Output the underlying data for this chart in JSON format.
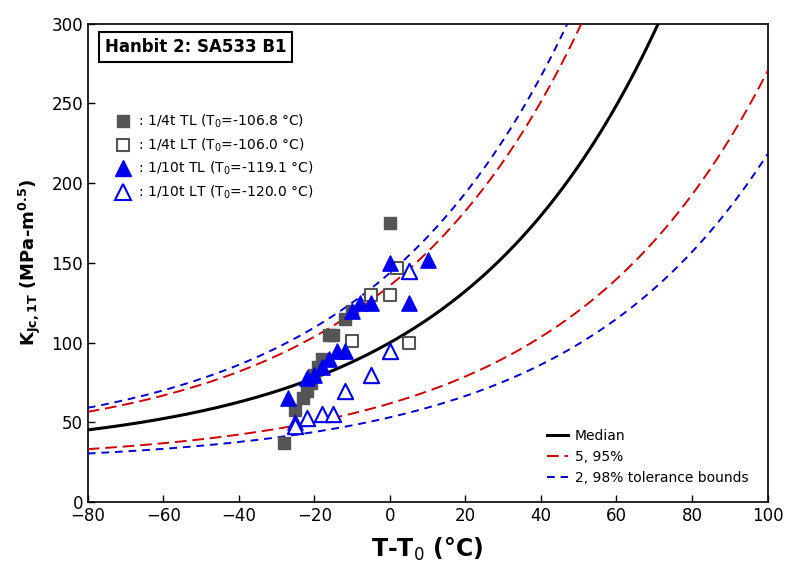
{
  "title": "Hanbit 2: SA533 B1",
  "xlabel": "T-T$_0$ (°C)",
  "ylabel": "K$_{Jc,1T}$ (MPa-m$^{0.5}$)",
  "xlim": [
    -80,
    100
  ],
  "ylim": [
    0,
    300
  ],
  "xticks": [
    -80,
    -60,
    -40,
    -20,
    0,
    20,
    40,
    60,
    80,
    100
  ],
  "yticks": [
    0,
    50,
    100,
    150,
    200,
    250,
    300
  ],
  "quarter_t_TL_x": [
    0,
    -10,
    -12,
    -15,
    -16,
    -18,
    -19,
    -20,
    -21,
    -22,
    -23,
    -25,
    -28
  ],
  "quarter_t_TL_y": [
    175,
    120,
    115,
    105,
    105,
    90,
    85,
    80,
    75,
    70,
    65,
    58,
    37
  ],
  "quarter_t_LT_x": [
    -10,
    -5,
    0,
    2,
    5
  ],
  "quarter_t_LT_y": [
    101,
    130,
    130,
    147,
    100
  ],
  "tenth_t_TL_x": [
    -27,
    -25,
    -22,
    -20,
    -18,
    -16,
    -14,
    -12,
    -10,
    -8,
    -5,
    0,
    5,
    10
  ],
  "tenth_t_TL_y": [
    65,
    50,
    78,
    80,
    85,
    90,
    95,
    95,
    120,
    125,
    125,
    150,
    125,
    152
  ],
  "tenth_t_LT_x": [
    -25,
    -22,
    -18,
    -15,
    -12,
    -5,
    0,
    5
  ],
  "tenth_t_LT_y": [
    48,
    53,
    55,
    55,
    70,
    80,
    95,
    145
  ],
  "curve_x_min": -80,
  "curve_x_max": 100,
  "legend_label_1": " : 1/4t TL (T$_0$=-106.8 °C)",
  "legend_label_2": " : 1/4t LT (T$_0$=-106.0 °C)",
  "legend_label_3": " : 1/10t TL (T$_0$=-119.1 °C)",
  "legend_label_4": " : 1/10t LT (T$_0$=-120.0 °C)",
  "color_gray": "#555555",
  "color_blue": "#0000EE",
  "color_median": "#000000",
  "color_5_95": "#CC0000",
  "color_2_98": "#0000CC"
}
